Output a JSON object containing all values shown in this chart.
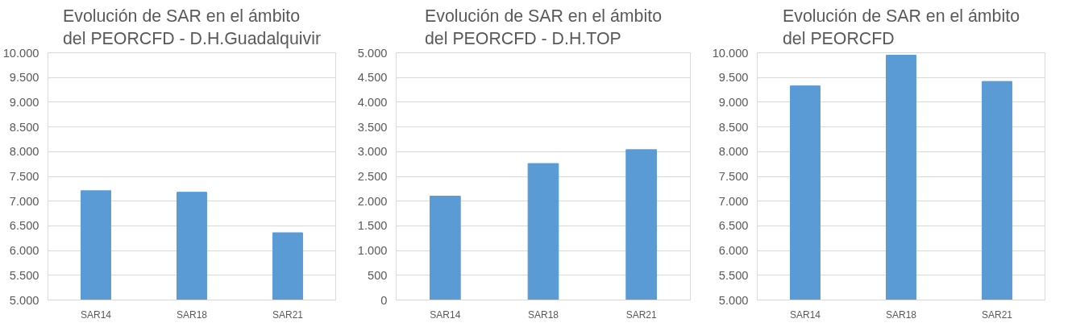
{
  "chart_data": [
    {
      "type": "bar",
      "title": "Evolución de SAR en el ámbito\ndel PEORCFD - D.H.Guadalquivir",
      "categories": [
        "SAR14",
        "SAR18",
        "SAR21"
      ],
      "values": [
        7210,
        7180,
        6360
      ],
      "color": "#5b9bd5",
      "ylim": [
        5000,
        10000
      ],
      "yticks": [
        {
          "value": 5000,
          "label": "5.000"
        },
        {
          "value": 5500,
          "label": "5.500"
        },
        {
          "value": 6000,
          "label": "6.000"
        },
        {
          "value": 6500,
          "label": "6.500"
        },
        {
          "value": 7000,
          "label": "7.000"
        },
        {
          "value": 7500,
          "label": "7.500"
        },
        {
          "value": 8000,
          "label": "8.000"
        },
        {
          "value": 8500,
          "label": "8.500"
        },
        {
          "value": 9000,
          "label": "9.000"
        },
        {
          "value": 9500,
          "label": "9.500"
        },
        {
          "value": 10000,
          "label": "10.000"
        }
      ],
      "grid": "y",
      "legend": false
    },
    {
      "type": "bar",
      "title": "Evolución de SAR en el ámbito\ndel PEORCFD - D.H.TOP",
      "categories": [
        "SAR14",
        "SAR18",
        "SAR21"
      ],
      "values": [
        2100,
        2760,
        3040
      ],
      "color": "#5b9bd5",
      "ylim": [
        0,
        5000
      ],
      "yticks": [
        0,
        500,
        {
          "value": 1000,
          "label": "1.000"
        },
        {
          "value": 1500,
          "label": "1.500"
        },
        {
          "value": 2000,
          "label": "2.000"
        },
        {
          "value": 2500,
          "label": "2.500"
        },
        {
          "value": 3000,
          "label": "3.000"
        },
        {
          "value": 3500,
          "label": "3.500"
        },
        {
          "value": 4000,
          "label": "4.000"
        },
        {
          "value": 4500,
          "label": "4.500"
        },
        {
          "value": 5000,
          "label": "5.000"
        }
      ],
      "grid": "y",
      "legend": false
    },
    {
      "type": "bar",
      "title": "Evolución de SAR en el ámbito\ndel PEORCFD",
      "categories": [
        "SAR14",
        "SAR18",
        "SAR21"
      ],
      "values": [
        9330,
        9950,
        9420
      ],
      "color": "#5b9bd5",
      "ylim": [
        5000,
        10000
      ],
      "yticks": [
        {
          "value": 5000,
          "label": "5.000"
        },
        {
          "value": 5500,
          "label": "5.500"
        },
        {
          "value": 6000,
          "label": "6.000"
        },
        {
          "value": 6500,
          "label": "6.500"
        },
        {
          "value": 7000,
          "label": "7.000"
        },
        {
          "value": 7500,
          "label": "7.500"
        },
        {
          "value": 8000,
          "label": "8.000"
        },
        {
          "value": 8500,
          "label": "8.500"
        },
        {
          "value": 9000,
          "label": "9.000"
        },
        {
          "value": 9500,
          "label": "9.500"
        },
        {
          "value": 10000,
          "label": "10.000"
        }
      ],
      "grid": "y",
      "legend": false
    }
  ]
}
